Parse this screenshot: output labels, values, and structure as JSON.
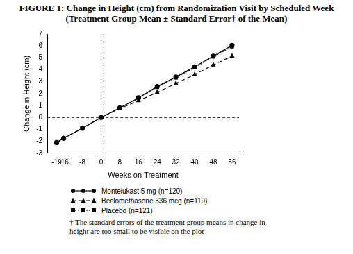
{
  "chart_data": {
    "type": "line",
    "title": "FIGURE 1: Change in Height (cm) from Randomization Visit by Scheduled Week (Treatment Group Mean ± Standard Error† of the Mean)",
    "x_label": "Weeks on Treatment",
    "y_label": "Change in Height (cm)",
    "footnote": "† The standard errors of the treatment group means in change in height are too small to be visible on the plot",
    "x": [
      -19,
      -16,
      -8,
      0,
      8,
      16,
      24,
      32,
      40,
      48,
      56
    ],
    "series": [
      {
        "name": "Montelukast 5 mg (n=120)",
        "color": "#000000",
        "marker": "circle",
        "line_style": "solid",
        "values": [
          -2.1,
          -1.75,
          -0.9,
          0,
          0.8,
          1.65,
          2.6,
          3.4,
          4.25,
          5.15,
          6.05
        ]
      },
      {
        "name": "Beclomethasone 336 mcg (n=119)",
        "color": "#000000",
        "marker": "triangle",
        "line_style": "dashed",
        "values": [
          -2.15,
          -1.75,
          -0.9,
          0,
          0.75,
          1.4,
          2.1,
          2.85,
          3.6,
          4.4,
          5.15
        ]
      },
      {
        "name": "Placebo (n=121)",
        "color": "#000000",
        "marker": "square",
        "line_style": "dotted",
        "values": [
          -2.1,
          -1.75,
          -0.9,
          0,
          0.8,
          1.6,
          2.55,
          3.35,
          4.2,
          5.1,
          5.95
        ]
      }
    ],
    "xlim": [
      -23,
      59
    ],
    "xticks": [
      -19,
      -16,
      -8,
      0,
      8,
      16,
      24,
      32,
      40,
      48,
      56
    ],
    "ylim": [
      -3,
      7
    ],
    "yticks": [
      -3,
      -2,
      -1,
      0,
      1,
      2,
      3,
      4,
      5,
      6,
      7
    ],
    "grid": false,
    "legend": "bottom left",
    "reference_lines": [
      {
        "axis": "x",
        "value": 0
      },
      {
        "axis": "y",
        "value": 0
      }
    ]
  }
}
